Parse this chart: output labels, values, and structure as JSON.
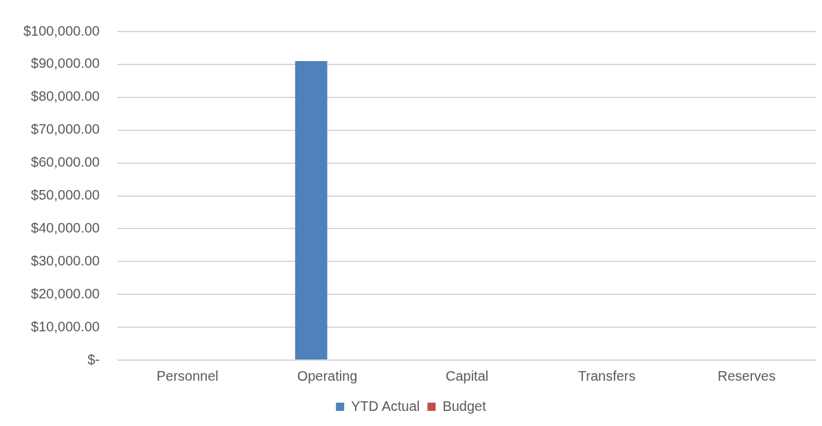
{
  "chart_data": {
    "type": "bar",
    "categories": [
      "Personnel",
      "Operating",
      "Capital",
      "Transfers",
      "Reserves"
    ],
    "series": [
      {
        "name": "YTD Actual",
        "color": "#4f81bd",
        "values": [
          0,
          91000,
          0,
          0,
          0
        ]
      },
      {
        "name": "Budget",
        "color": "#c0504d",
        "values": [
          0,
          0,
          0,
          0,
          0
        ]
      }
    ],
    "ylim": [
      0,
      100000
    ],
    "yticks": [
      {
        "value": 0,
        "label": "$-"
      },
      {
        "value": 10000,
        "label": "$10,000.00"
      },
      {
        "value": 20000,
        "label": "$20,000.00"
      },
      {
        "value": 30000,
        "label": "$30,000.00"
      },
      {
        "value": 40000,
        "label": "$40,000.00"
      },
      {
        "value": 50000,
        "label": "$50,000.00"
      },
      {
        "value": 60000,
        "label": "$60,000.00"
      },
      {
        "value": 70000,
        "label": "$70,000.00"
      },
      {
        "value": 80000,
        "label": "$80,000.00"
      },
      {
        "value": 90000,
        "label": "$90,000.00"
      },
      {
        "value": 100000,
        "label": "$100,000.00"
      }
    ],
    "grid": "y",
    "legend": "bottom"
  }
}
